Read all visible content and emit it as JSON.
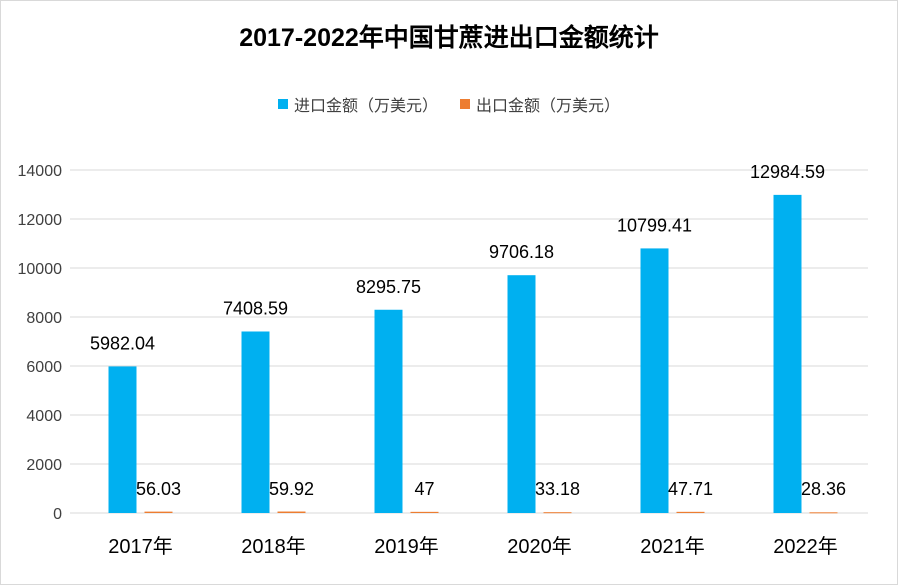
{
  "chart_data": {
    "type": "bar",
    "title": "2017-2022年中国甘蔗进出口金额统计",
    "categories": [
      "2017年",
      "2018年",
      "2019年",
      "2020年",
      "2021年",
      "2022年"
    ],
    "series": [
      {
        "name": "进口金额（万美元）",
        "color": "#00b0f0",
        "values": [
          5982.04,
          7408.59,
          8295.75,
          9706.18,
          10799.41,
          12984.59
        ],
        "labels": [
          "5982.04",
          "7408.59",
          "8295.75",
          "9706.18",
          "10799.41",
          "12984.59"
        ]
      },
      {
        "name": "出口金额（万美元）",
        "color": "#ed7d31",
        "values": [
          56.03,
          59.92,
          47,
          33.18,
          47.71,
          28.36
        ],
        "labels": [
          "56.03",
          "59.92",
          "47",
          "33.18",
          "47.71",
          "28.36"
        ]
      }
    ],
    "xlabel": "",
    "ylabel": "",
    "ylim": [
      0,
      14000
    ],
    "yticks": [
      0,
      2000,
      4000,
      6000,
      8000,
      10000,
      12000,
      14000
    ],
    "grid": true,
    "legend": "top"
  }
}
